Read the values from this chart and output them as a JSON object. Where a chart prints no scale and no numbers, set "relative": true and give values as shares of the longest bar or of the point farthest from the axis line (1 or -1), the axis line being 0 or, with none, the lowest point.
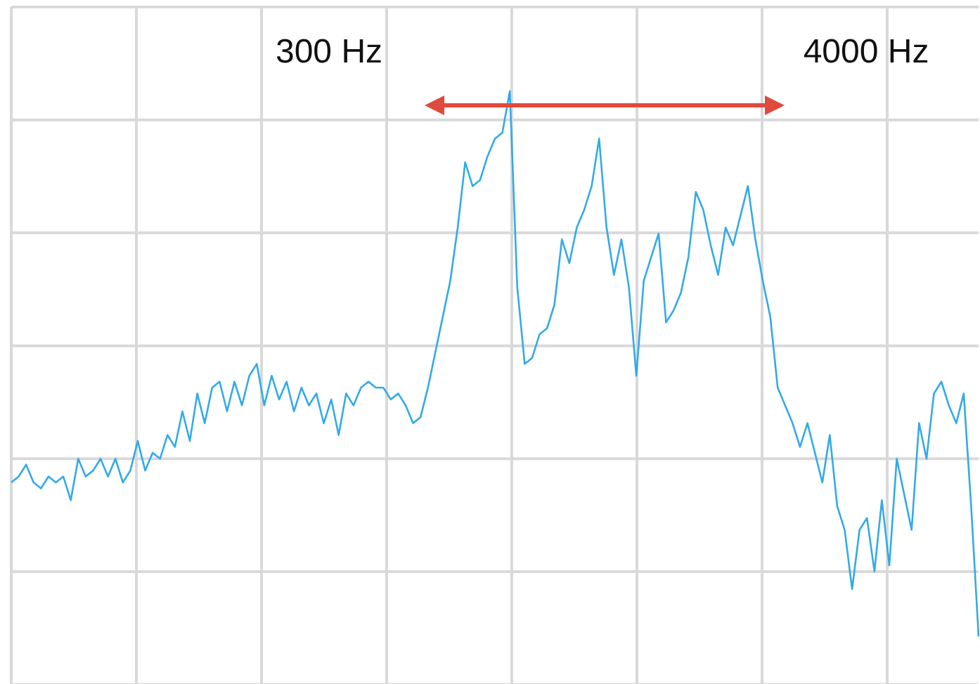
{
  "chart_data": {
    "type": "line",
    "relative": true,
    "grid": true,
    "color": "#33aae8",
    "annotations": [
      "300 Hz",
      "4000 Hz"
    ],
    "categories": [
      null,
      null,
      null,
      null,
      null,
      null,
      null,
      null,
      null,
      null,
      null,
      null,
      null,
      null,
      null,
      null,
      null,
      null,
      null,
      null,
      null,
      null,
      null,
      null,
      null,
      null,
      null,
      null,
      null,
      null,
      null,
      null,
      null,
      null,
      null,
      null,
      null,
      null,
      null,
      null,
      null,
      null,
      null,
      null,
      null,
      null,
      null,
      null,
      null,
      null,
      null,
      null,
      null,
      null,
      null,
      null,
      null,
      null,
      null,
      null,
      null,
      null,
      null,
      null,
      null,
      null,
      null,
      null,
      null,
      null,
      null,
      null,
      null,
      null,
      null,
      null,
      null,
      null,
      null,
      null,
      null,
      null,
      null,
      null,
      null,
      null,
      null,
      null,
      null,
      null,
      null,
      null,
      null,
      null,
      null,
      null,
      null,
      null,
      null,
      null,
      null,
      null,
      null,
      null,
      null,
      null,
      null,
      null,
      null,
      null,
      null,
      null,
      null,
      null,
      null,
      null,
      null,
      null,
      null,
      null,
      null,
      null,
      null,
      null,
      null,
      null,
      null,
      null,
      null,
      null,
      null
    ],
    "values": [
      0.34,
      0.35,
      0.37,
      0.34,
      0.33,
      0.35,
      0.34,
      0.35,
      0.31,
      0.38,
      0.35,
      0.36,
      0.38,
      0.35,
      0.38,
      0.34,
      0.36,
      0.41,
      0.36,
      0.39,
      0.38,
      0.42,
      0.4,
      0.46,
      0.41,
      0.49,
      0.44,
      0.5,
      0.51,
      0.46,
      0.51,
      0.47,
      0.52,
      0.54,
      0.47,
      0.52,
      0.48,
      0.51,
      0.46,
      0.5,
      0.47,
      0.49,
      0.44,
      0.48,
      0.42,
      0.49,
      0.47,
      0.5,
      0.51,
      0.5,
      0.5,
      0.48,
      0.49,
      0.47,
      0.44,
      0.45,
      0.5,
      0.56,
      0.62,
      0.68,
      0.77,
      0.88,
      0.84,
      0.85,
      0.89,
      0.92,
      0.93,
      1,
      0.67,
      0.54,
      0.55,
      0.59,
      0.6,
      0.64,
      0.75,
      0.71,
      0.77,
      0.8,
      0.84,
      0.92,
      0.77,
      0.69,
      0.75,
      0.67,
      0.52,
      0.68,
      0.72,
      0.76,
      0.61,
      0.63,
      0.66,
      0.72,
      0.83,
      0.8,
      0.74,
      0.69,
      0.77,
      0.74,
      0.79,
      0.84,
      0.75,
      0.68,
      0.62,
      0.5,
      0.47,
      0.44,
      0.4,
      0.44,
      0.39,
      0.34,
      0.42,
      0.3,
      0.26,
      0.16,
      0.26,
      0.28,
      0.19,
      0.31,
      0.2,
      0.38,
      0.32,
      0.26,
      0.44,
      0.38,
      0.49,
      0.51,
      0.47,
      0.44,
      0.49,
      0.3,
      0.08
    ]
  }
}
